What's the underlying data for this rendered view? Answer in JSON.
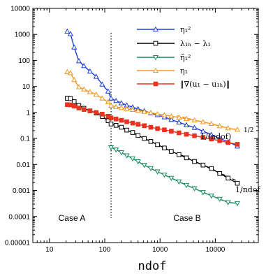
{
  "chart_data": {
    "type": "line",
    "title": "",
    "xlabel": "ndof",
    "ylabel": "",
    "xscale": "log",
    "yscale": "log",
    "xlim": [
      5,
      60000
    ],
    "ylim": [
      1e-05,
      10000
    ],
    "grid": false,
    "legend_position": "top-right",
    "x_ticks": [
      "10",
      "100",
      "1000",
      "10000"
    ],
    "y_ticks": [
      "0.00001",
      "0.0001",
      "0.001",
      "0.01",
      "0.1",
      "1",
      "10",
      "100",
      "1000",
      "10000"
    ],
    "series": [
      {
        "name": "η₁²",
        "color": "#1f3fd6",
        "marker": "triangle-up",
        "x": [
          21,
          24,
          28,
          34,
          42,
          54,
          70,
          90,
          115,
          130,
          160,
          200,
          250,
          320,
          400,
          520,
          680,
          900,
          1200,
          1600,
          2200,
          3000,
          4200,
          6000,
          8500,
          12000,
          17000,
          25000
        ],
        "y": [
          1300,
          1050,
          320,
          95,
          62,
          38,
          24,
          12,
          6.5,
          3.5,
          2.8,
          2.3,
          1.9,
          1.6,
          1.35,
          1.15,
          0.95,
          0.8,
          0.66,
          0.53,
          0.42,
          0.33,
          0.26,
          0.19,
          0.14,
          0.1,
          0.075,
          0.05
        ]
      },
      {
        "name": "λ₁ₕ − λ₁",
        "color": "#000000",
        "marker": "square-open",
        "x": [
          21,
          24,
          28,
          34,
          42,
          54,
          70,
          90,
          115,
          130,
          160,
          200,
          250,
          320,
          400,
          520,
          680,
          900,
          1200,
          1600,
          2200,
          3000,
          4200,
          6000,
          8500,
          12000,
          17000,
          25000
        ],
        "y": [
          3.5,
          3.4,
          2.6,
          1.85,
          1.45,
          1.15,
          0.95,
          0.7,
          0.48,
          0.36,
          0.32,
          0.27,
          0.21,
          0.17,
          0.13,
          0.1,
          0.077,
          0.058,
          0.043,
          0.032,
          0.024,
          0.018,
          0.013,
          0.0095,
          0.007,
          0.0045,
          0.003,
          0.0019
        ]
      },
      {
        "name": "η̃₁²",
        "color": "#178a5b",
        "marker": "triangle-down",
        "x": [
          130,
          160,
          200,
          250,
          320,
          400,
          520,
          680,
          900,
          1200,
          1600,
          2200,
          3000,
          4200,
          6000,
          8500,
          12000,
          17000,
          25000
        ],
        "y": [
          0.045,
          0.037,
          0.029,
          0.022,
          0.017,
          0.013,
          0.0095,
          0.0071,
          0.0053,
          0.004,
          0.003,
          0.0022,
          0.0016,
          0.0012,
          0.00085,
          0.00063,
          0.00047,
          0.00035,
          0.00032
        ]
      },
      {
        "name": "η₁",
        "color": "#f5961e",
        "marker": "triangle-up",
        "x": [
          21,
          24,
          28,
          34,
          42,
          54,
          70,
          90,
          115,
          130,
          160,
          200,
          250,
          320,
          400,
          520,
          680,
          900,
          1200,
          1600,
          2200,
          3000,
          4200,
          6000,
          8500,
          12000,
          17000,
          25000
        ],
        "y": [
          36,
          33,
          18,
          9.5,
          7.8,
          6.2,
          4.9,
          3.5,
          2.5,
          1.85,
          1.65,
          1.5,
          1.38,
          1.28,
          1.18,
          1.08,
          0.98,
          0.88,
          0.8,
          0.72,
          0.64,
          0.57,
          0.5,
          0.43,
          0.37,
          0.3,
          0.25,
          0.22
        ]
      },
      {
        "name": "‖∇(u₁ − u₁ₕ)‖",
        "color": "#e8331f",
        "marker": "square-filled",
        "x": [
          21,
          24,
          28,
          34,
          42,
          54,
          70,
          90,
          115,
          130,
          160,
          200,
          250,
          320,
          400,
          520,
          680,
          900,
          1200,
          1600,
          2200,
          3000,
          4200,
          6000,
          8500,
          12000,
          17000,
          25000
        ],
        "y": [
          2.0,
          1.95,
          1.75,
          1.48,
          1.3,
          1.15,
          1.0,
          0.86,
          0.72,
          0.62,
          0.56,
          0.5,
          0.44,
          0.39,
          0.35,
          0.31,
          0.27,
          0.24,
          0.215,
          0.19,
          0.165,
          0.145,
          0.127,
          0.11,
          0.095,
          0.082,
          0.07,
          0.06
        ]
      }
    ],
    "reference_lines": [
      {
        "label": "1/(ndof)^{1/2}",
        "color": "#f5961e",
        "style": "dashed",
        "x": [
          2000,
          25000
        ],
        "y": [
          0.75,
          0.21
        ]
      },
      {
        "label": "1/ndof",
        "color": "#000000",
        "style": "dashed",
        "x": [
          2000,
          25000
        ],
        "y": [
          0.028,
          0.0023
        ]
      }
    ],
    "divider": {
      "x": 130,
      "style": "dotted"
    },
    "annotations": {
      "case_a": "Case A",
      "case_b": "Case B",
      "slope_half_main": "1/(ndof)",
      "slope_half_exp": "1/2",
      "slope_one": "1/ndof"
    }
  }
}
